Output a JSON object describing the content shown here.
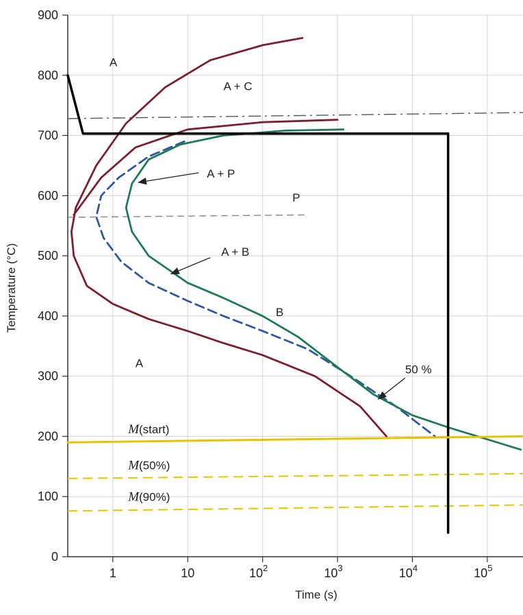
{
  "chart_data": {
    "type": "line",
    "title": "",
    "xlabel": "Time (s)",
    "ylabel": "Temperature (°C)",
    "x_scale": "log",
    "xlim": [
      0.25,
      300000
    ],
    "ylim": [
      0,
      900
    ],
    "x_ticks": [
      {
        "value": 1,
        "base": "1",
        "exp": ""
      },
      {
        "value": 10,
        "base": "10",
        "exp": ""
      },
      {
        "value": 100,
        "base": "10",
        "exp": "2"
      },
      {
        "value": 1000,
        "base": "10",
        "exp": "3"
      },
      {
        "value": 10000,
        "base": "10",
        "exp": "4"
      },
      {
        "value": 100000,
        "base": "10",
        "exp": "5"
      }
    ],
    "y_ticks": [
      "0",
      "100",
      "200",
      "300",
      "400",
      "500",
      "600",
      "700",
      "800",
      "900"
    ],
    "grid": true,
    "colors": {
      "start": "#7a2030",
      "middle": "#2f58a0",
      "finish": "#1f7a55",
      "path": "#000000",
      "martensite": "#e8c400",
      "eutectoid": "#555555",
      "ref": "#888888"
    },
    "series": [
      {
        "key": "start",
        "x": [
          340,
          100,
          20,
          5,
          1.5,
          0.6,
          0.32,
          0.28,
          0.3,
          0.45,
          1,
          3,
          10,
          30,
          100,
          500,
          2000,
          4500
        ],
        "y": [
          862,
          850,
          825,
          780,
          720,
          650,
          580,
          540,
          500,
          450,
          420,
          395,
          375,
          355,
          335,
          300,
          250,
          200
        ]
      },
      {
        "key": "start",
        "x": [
          0.3,
          0.7,
          2,
          10,
          100,
          1000
        ],
        "y": [
          568,
          630,
          680,
          710,
          722,
          726
        ]
      },
      {
        "key": "middle",
        "x": [
          9,
          3,
          1.2,
          0.7,
          0.6,
          0.75,
          1.3,
          3,
          10,
          30,
          100,
          400,
          1500,
          6000,
          20000
        ],
        "y": [
          690,
          665,
          630,
          600,
          565,
          530,
          490,
          455,
          425,
          400,
          375,
          345,
          300,
          250,
          200
        ]
      },
      {
        "key": "finish",
        "x": [
          1200,
          200,
          30,
          8,
          3,
          1.8,
          1.5,
          1.8,
          3,
          10,
          30,
          100,
          300,
          1000,
          3000,
          10000,
          30000,
          100000,
          280000
        ],
        "y": [
          710,
          708,
          700,
          685,
          660,
          620,
          580,
          540,
          500,
          455,
          430,
          400,
          365,
          315,
          270,
          235,
          215,
          195,
          178
        ]
      },
      {
        "key": "path",
        "x": [
          0.25,
          0.4,
          30000,
          30000
        ],
        "y": [
          800,
          703,
          703,
          40
        ]
      },
      {
        "key": "martensite",
        "x": [
          0.25,
          300000
        ],
        "y": [
          190,
          200
        ]
      }
    ],
    "dashed_lines": [
      {
        "key": "martensite",
        "x": [
          0.25,
          300000
        ],
        "y": [
          130,
          138
        ]
      },
      {
        "key": "martensite",
        "x": [
          0.25,
          300000
        ],
        "y": [
          76,
          86
        ]
      },
      {
        "key": "eutectoid",
        "x": [
          0.25,
          300000
        ],
        "y": [
          728,
          738
        ]
      },
      {
        "key": "ref",
        "x": [
          0.25,
          400
        ],
        "y": [
          564,
          568
        ]
      }
    ],
    "annotations": [
      {
        "text": "A",
        "x": 0.9,
        "y": 815
      },
      {
        "text": "A + C",
        "x": 30,
        "y": 775
      },
      {
        "text": "A + P",
        "x": 18,
        "y": 630
      },
      {
        "text": "P",
        "x": 250,
        "y": 590
      },
      {
        "text": "A + B",
        "x": 28,
        "y": 500
      },
      {
        "text": "B",
        "x": 150,
        "y": 400
      },
      {
        "text": "A",
        "x": 2,
        "y": 315
      },
      {
        "text": "50 %",
        "x": 8000,
        "y": 305
      }
    ],
    "arrows": [
      {
        "x1": 14,
        "y1": 638,
        "x2": 2.2,
        "y2": 622
      },
      {
        "x1": 20,
        "y1": 497,
        "x2": 6,
        "y2": 470
      },
      {
        "x1": 8000,
        "y1": 297,
        "x2": 3500,
        "y2": 262
      }
    ],
    "martensite_labels": [
      {
        "italic": "M",
        "rest": "(start)",
        "x": 1.6,
        "y": 205
      },
      {
        "italic": "M",
        "rest": "(50%)",
        "x": 1.6,
        "y": 145
      },
      {
        "italic": "M",
        "rest": "(90%)",
        "x": 1.6,
        "y": 93
      }
    ]
  }
}
